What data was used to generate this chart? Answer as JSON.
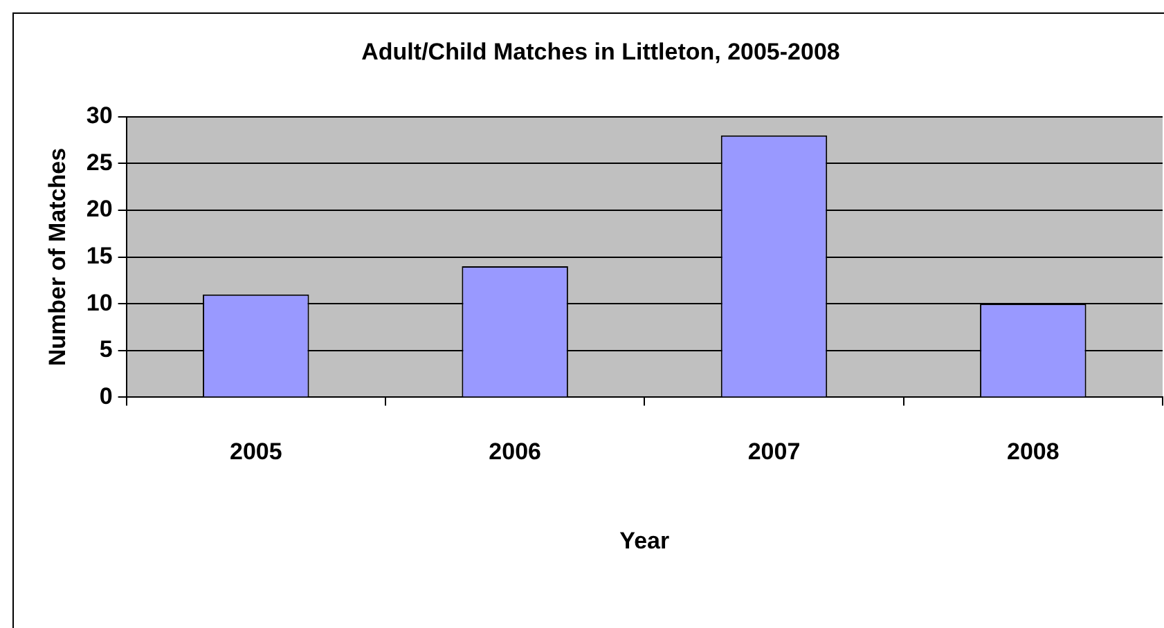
{
  "chart_data": {
    "type": "bar",
    "title": "Adult/Child Matches in Littleton, 2005-2008",
    "xlabel": "Year",
    "ylabel": "Number of Matches",
    "categories": [
      "2005",
      "2006",
      "2007",
      "2008"
    ],
    "values": [
      11,
      14,
      28,
      10
    ],
    "color": "#9999ff",
    "ylim": [
      0,
      30
    ],
    "yticks": [
      0,
      5,
      10,
      15,
      20,
      25,
      30
    ],
    "grid": "y"
  }
}
